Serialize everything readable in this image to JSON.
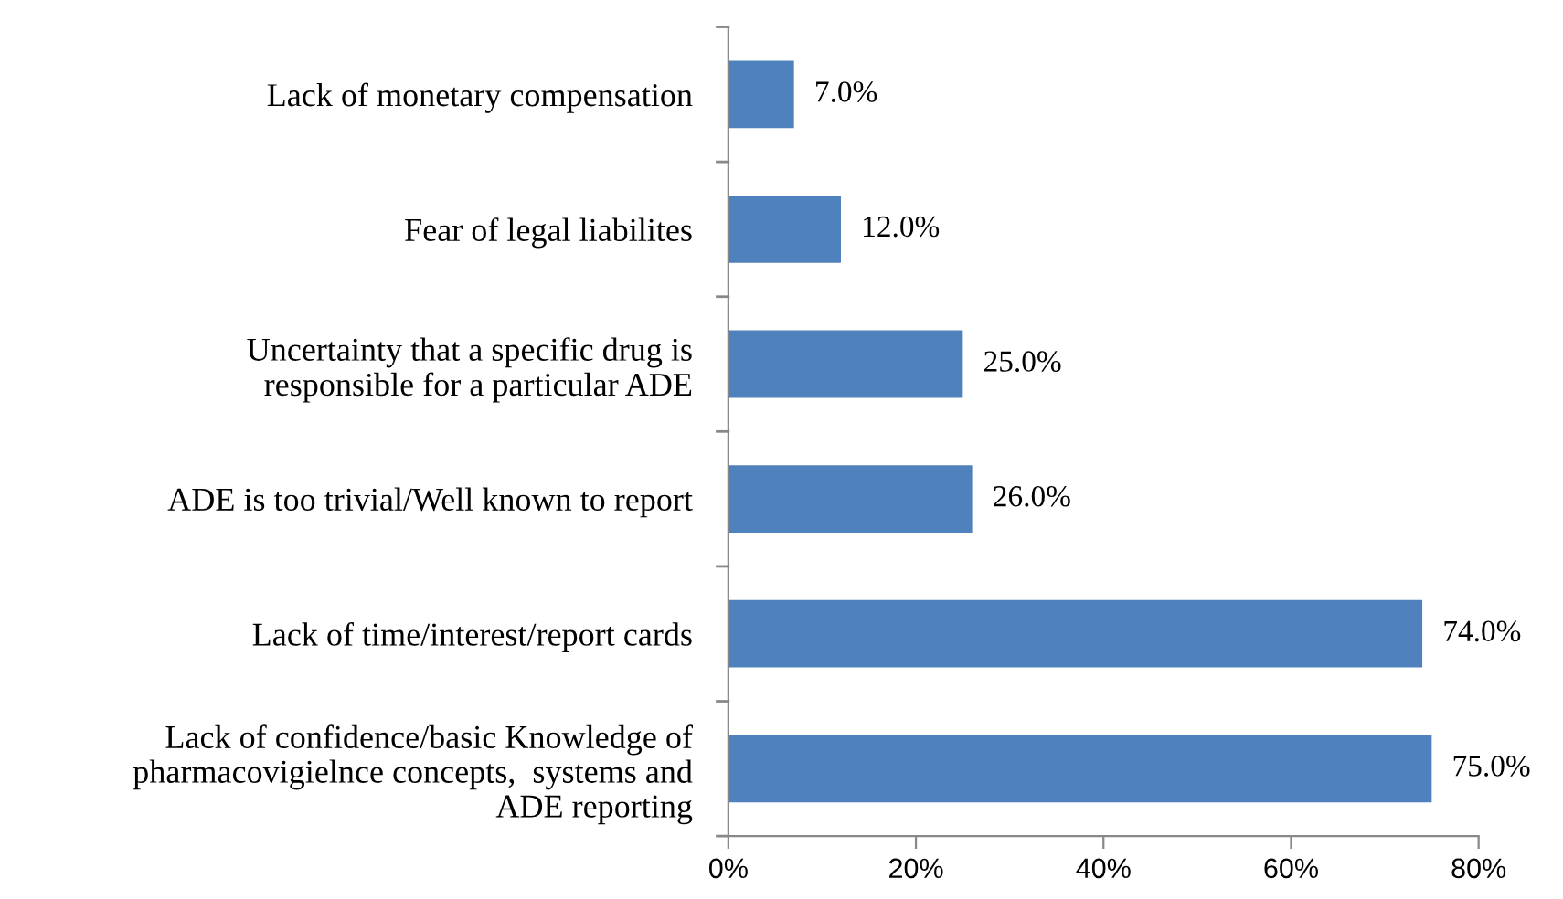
{
  "chart_data": {
    "type": "bar",
    "orientation": "horizontal",
    "categories": [
      "Lack of monetary compensation",
      "Fear of legal liabilites",
      "Uncertainty that a specific drug is\nresponsible for a particular ADE",
      "ADE is too trivial/Well known to report",
      "Lack of time/interest/report cards",
      "Lack of confidence/basic Knowledge of\npharmacovigielnce concepts,  systems and\nADE reporting"
    ],
    "values": [
      7.0,
      12.0,
      25.0,
      26.0,
      74.0,
      75.0
    ],
    "value_labels": [
      "7.0%",
      "12.0%",
      "25.0%",
      "26.0%",
      "74.0%",
      "75.0%"
    ],
    "color": "#4f81bd",
    "xlim": [
      0,
      80
    ],
    "xticks": [
      {
        "value": 0,
        "label": "0%"
      },
      {
        "value": 20,
        "label": "20%"
      },
      {
        "value": 40,
        "label": "40%"
      },
      {
        "value": 60,
        "label": "60%"
      },
      {
        "value": 80,
        "label": "80%"
      }
    ],
    "grid": false,
    "legend": false
  }
}
